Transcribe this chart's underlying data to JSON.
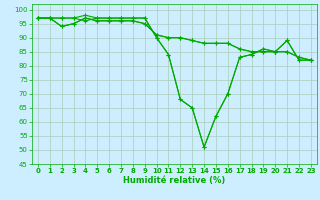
{
  "title": "",
  "xlabel": "Humidité relative (%)",
  "ylabel": "",
  "bg_color": "#cceeff",
  "line_color": "#00aa00",
  "marker": "+",
  "xlim": [
    -0.5,
    23.5
  ],
  "ylim": [
    45,
    102
  ],
  "yticks": [
    45,
    50,
    55,
    60,
    65,
    70,
    75,
    80,
    85,
    90,
    95,
    100
  ],
  "xticks": [
    0,
    1,
    2,
    3,
    4,
    5,
    6,
    7,
    8,
    9,
    10,
    11,
    12,
    13,
    14,
    15,
    16,
    17,
    18,
    19,
    20,
    21,
    22,
    23
  ],
  "series": [
    [
      97,
      97,
      97,
      97,
      98,
      97,
      97,
      97,
      97,
      97,
      90,
      84,
      68,
      65,
      51,
      62,
      70,
      83,
      84,
      86,
      85,
      89,
      82,
      82
    ],
    [
      97,
      97,
      97,
      97,
      96,
      97,
      97,
      97,
      97,
      97,
      90,
      84,
      68,
      65,
      51,
      62,
      70,
      83,
      84,
      86,
      85,
      89,
      82,
      82
    ],
    [
      97,
      97,
      94,
      95,
      97,
      96,
      96,
      96,
      96,
      95,
      91,
      90,
      90,
      89,
      88,
      88,
      88,
      86,
      85,
      85,
      85,
      85,
      83,
      82
    ],
    [
      97,
      97,
      94,
      95,
      97,
      96,
      96,
      96,
      96,
      95,
      91,
      90,
      90,
      89,
      88,
      88,
      88,
      86,
      85,
      85,
      85,
      85,
      83,
      82
    ]
  ],
  "grid_color": "#aaccbb",
  "grid_lw": 0.5,
  "xlabel_fontsize": 6.0,
  "xlabel_bold": true,
  "tick_labelsize": 5.0,
  "line_width": 0.8,
  "marker_size": 3.5,
  "marker_lw": 0.8
}
